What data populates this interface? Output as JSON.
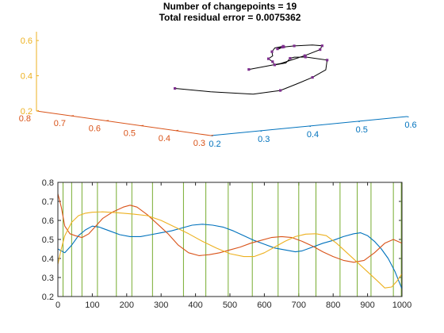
{
  "figure": {
    "title_line1": "Number of changepoints = 19",
    "title_line2": "Total residual error = 0.0075362"
  },
  "colors": {
    "blue": "#0072BD",
    "orange": "#D95319",
    "yellow": "#EDB120",
    "green": "#77AC30",
    "purple": "#7E2F8E",
    "black": "#000000"
  },
  "chart_data": [
    {
      "type": "line3d",
      "xlim": [
        0.2,
        0.6
      ],
      "ylim": [
        0.3,
        0.8
      ],
      "zlim": [
        0.2,
        0.65
      ],
      "x_ticks": [
        "0.2",
        "0.3",
        "0.4",
        "0.5",
        "0.6"
      ],
      "y_ticks": [
        "0.3",
        "0.4",
        "0.5",
        "0.6",
        "0.7",
        "0.8"
      ],
      "z_ticks": [
        "0.2",
        "0.4",
        "0.6"
      ],
      "curve": {
        "x": [
          0.44,
          0.47,
          0.5,
          0.52,
          0.53,
          0.55,
          0.57,
          0.58,
          0.55,
          0.52,
          0.49,
          0.46,
          0.43,
          0.44,
          0.46,
          0.49,
          0.51,
          0.53,
          0.54,
          0.52,
          0.48,
          0.45,
          0.42,
          0.41,
          0.42,
          0.45,
          0.47,
          0.48,
          0.47,
          0.45,
          0.42
        ],
        "y": [
          0.74,
          0.68,
          0.6,
          0.55,
          0.52,
          0.5,
          0.49,
          0.5,
          0.52,
          0.51,
          0.48,
          0.45,
          0.44,
          0.46,
          0.5,
          0.53,
          0.56,
          0.58,
          0.57,
          0.54,
          0.5,
          0.46,
          0.42,
          0.39,
          0.37,
          0.36,
          0.36,
          0.38,
          0.41,
          0.45,
          0.5
        ],
        "z": [
          0.28,
          0.27,
          0.27,
          0.3,
          0.34,
          0.38,
          0.42,
          0.47,
          0.49,
          0.5,
          0.51,
          0.5,
          0.5,
          0.51,
          0.51,
          0.51,
          0.52,
          0.53,
          0.54,
          0.55,
          0.56,
          0.58,
          0.6,
          0.62,
          0.63,
          0.63,
          0.62,
          0.59,
          0.55,
          0.5,
          0.46
        ]
      },
      "changepoint_indices": [
        0,
        3,
        5,
        7,
        8,
        10,
        12,
        13,
        14,
        16,
        18,
        19,
        21,
        23,
        24,
        26,
        27,
        28,
        30
      ]
    },
    {
      "type": "line",
      "xlim": [
        0,
        1000
      ],
      "ylim": [
        0.2,
        0.8
      ],
      "x_ticks": [
        "0",
        "100",
        "200",
        "300",
        "400",
        "500",
        "600",
        "700",
        "800",
        "900",
        "1000"
      ],
      "y_ticks": [
        "0.2",
        "0.3",
        "0.4",
        "0.5",
        "0.6",
        "0.7",
        "0.8"
      ],
      "changepoints": [
        15,
        40,
        70,
        115,
        170,
        215,
        275,
        365,
        430,
        495,
        565,
        640,
        700,
        750,
        820,
        870,
        910,
        975,
        998
      ],
      "series": [
        {
          "color_key": "blue",
          "x": [
            0,
            20,
            40,
            60,
            80,
            100,
            120,
            150,
            180,
            210,
            240,
            270,
            300,
            330,
            360,
            390,
            420,
            450,
            480,
            510,
            540,
            570,
            600,
            630,
            660,
            690,
            710,
            740,
            770,
            800,
            830,
            860,
            880,
            900,
            920,
            940,
            960,
            980,
            1000
          ],
          "y": [
            0.45,
            0.43,
            0.47,
            0.52,
            0.55,
            0.57,
            0.565,
            0.545,
            0.525,
            0.515,
            0.515,
            0.525,
            0.535,
            0.545,
            0.56,
            0.575,
            0.58,
            0.575,
            0.565,
            0.545,
            0.52,
            0.495,
            0.475,
            0.455,
            0.445,
            0.435,
            0.44,
            0.46,
            0.48,
            0.495,
            0.515,
            0.53,
            0.535,
            0.52,
            0.49,
            0.45,
            0.4,
            0.33,
            0.24
          ]
        },
        {
          "color_key": "orange",
          "x": [
            0,
            10,
            20,
            35,
            50,
            70,
            90,
            110,
            130,
            160,
            190,
            210,
            230,
            260,
            290,
            320,
            350,
            380,
            410,
            440,
            470,
            500,
            530,
            560,
            590,
            620,
            650,
            680,
            710,
            740,
            770,
            800,
            830,
            860,
            890,
            920,
            950,
            975,
            1000
          ],
          "y": [
            0.74,
            0.67,
            0.57,
            0.53,
            0.52,
            0.51,
            0.53,
            0.57,
            0.61,
            0.645,
            0.67,
            0.68,
            0.67,
            0.63,
            0.58,
            0.53,
            0.47,
            0.43,
            0.415,
            0.42,
            0.43,
            0.445,
            0.46,
            0.48,
            0.495,
            0.51,
            0.515,
            0.51,
            0.49,
            0.465,
            0.435,
            0.41,
            0.39,
            0.38,
            0.39,
            0.43,
            0.48,
            0.5,
            0.48
          ]
        },
        {
          "color_key": "yellow",
          "x": [
            0,
            10,
            20,
            40,
            60,
            80,
            100,
            130,
            160,
            190,
            220,
            260,
            300,
            340,
            380,
            420,
            460,
            500,
            540,
            570,
            600,
            630,
            660,
            690,
            720,
            750,
            780,
            810,
            840,
            870,
            900,
            930,
            950,
            970,
            985,
            1000
          ],
          "y": [
            0.37,
            0.45,
            0.52,
            0.59,
            0.625,
            0.638,
            0.643,
            0.645,
            0.642,
            0.638,
            0.633,
            0.625,
            0.6,
            0.565,
            0.53,
            0.49,
            0.455,
            0.425,
            0.41,
            0.41,
            0.43,
            0.46,
            0.49,
            0.515,
            0.528,
            0.53,
            0.52,
            0.48,
            0.43,
            0.38,
            0.33,
            0.28,
            0.245,
            0.25,
            0.28,
            0.32
          ]
        }
      ]
    }
  ]
}
